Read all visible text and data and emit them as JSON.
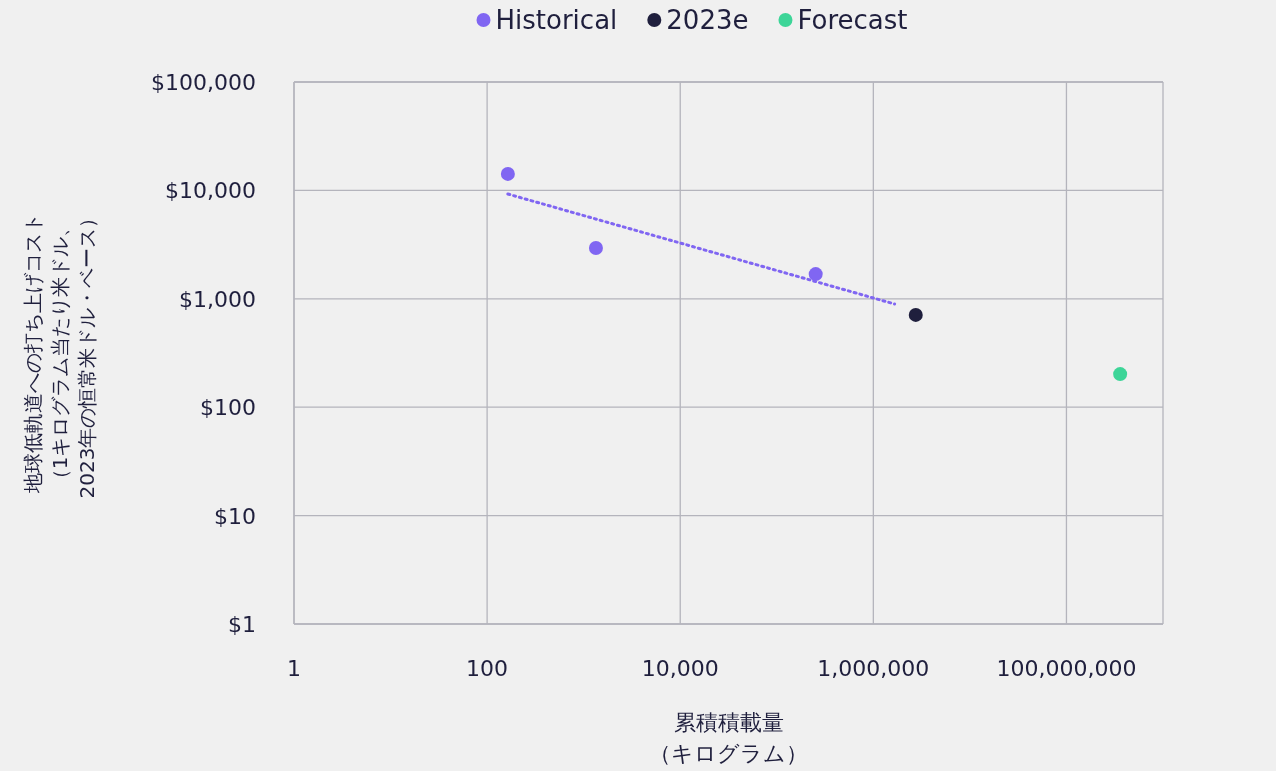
{
  "chart_data": {
    "type": "scatter",
    "log": "xy",
    "grid": true,
    "legend": "top",
    "marker": "circle",
    "xlabel": "累積積載量（キログラム）",
    "ylabel": "地球低軌道への打ち上げコスト（1キログラム当たり米ドル、2023年の恒常米ドル・ベース）",
    "xlim": [
      1,
      1000000000
    ],
    "ylim": [
      1,
      100000
    ],
    "xticks": [
      1,
      100,
      {
        "value": 10000,
        "label": "10,000"
      },
      {
        "value": 1000000,
        "label": "1,000,000"
      },
      {
        "value": 100000000,
        "label": "100,000,000"
      }
    ],
    "yticks": [
      {
        "value": 1,
        "label": "$1"
      },
      {
        "value": 10,
        "label": "$10"
      },
      {
        "value": 100,
        "label": "$100"
      },
      {
        "value": 1000,
        "label": "$1,000"
      },
      {
        "value": 10000,
        "label": "$10,000"
      },
      {
        "value": 100000,
        "label": "$100,000"
      }
    ],
    "series": [
      {
        "name": "Historical",
        "color": "#8066f2",
        "x": [
          164,
          1340,
          253000
        ],
        "values": [
          14200,
          2940,
          1690
        ]
      },
      {
        "name": "2023e",
        "color": "#1f1f3d",
        "x": [
          2750000
        ],
        "values": [
          710
        ]
      },
      {
        "name": "Forecast",
        "color": "#3dd598",
        "x": [
          360000000
        ],
        "values": [
          202
        ]
      },
      {
        "type": "line",
        "line_style": "dotted",
        "marker": "none",
        "color": "#8066f2",
        "x": [
          164,
          1660000
        ],
        "values": [
          9260,
          895
        ]
      }
    ]
  }
}
